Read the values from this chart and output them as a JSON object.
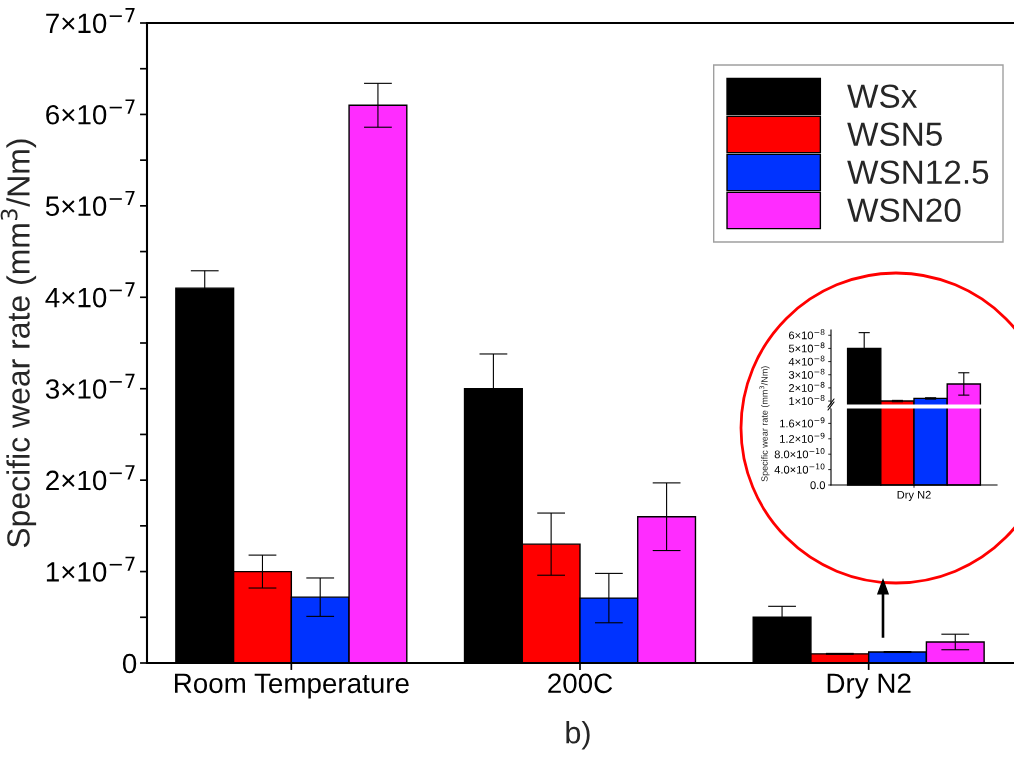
{
  "chart_data": [
    {
      "type": "bar",
      "ylabel": "Specific wear rate (mm$^{3}$/Nm)",
      "categories": [
        "Room Temperature",
        "200C",
        "Dry N2"
      ],
      "legend": "top right",
      "grid": false,
      "ylim": [
        0,
        7e-07
      ],
      "yticks": [
        {
          "value": 0,
          "label": "0"
        },
        {
          "value": 5e-08,
          "label": null
        },
        {
          "value": 1e-07,
          "label": "1×10$^{−7}$"
        },
        {
          "value": 1.5e-07,
          "label": null
        },
        {
          "value": 2e-07,
          "label": "2×10$^{−7}$"
        },
        {
          "value": 2.5e-07,
          "label": null
        },
        {
          "value": 3e-07,
          "label": "3×10$^{−7}$"
        },
        {
          "value": 3.5e-07,
          "label": null
        },
        {
          "value": 4e-07,
          "label": "4×10$^{−7}$"
        },
        {
          "value": 4.5e-07,
          "label": null
        },
        {
          "value": 5e-07,
          "label": "5×10$^{−7}$"
        },
        {
          "value": 5.5e-07,
          "label": null
        },
        {
          "value": 6e-07,
          "label": "6×10$^{−7}$"
        },
        {
          "value": 6.5e-07,
          "label": null
        },
        {
          "value": 7e-07,
          "label": "7×10$^{−7}$"
        }
      ],
      "series": [
        {
          "name": "WSx",
          "color": "#000000",
          "values": [
            4.1e-07,
            3e-07,
            5e-08
          ],
          "errors": [
            1.9e-08,
            3.8e-08,
            1.2e-08
          ]
        },
        {
          "name": "WSN5",
          "color": "#ff0000",
          "values": [
            1e-07,
            1.3e-07,
            1e-08
          ],
          "errors": [
            1.8e-08,
            3.4e-08,
            5e-10
          ]
        },
        {
          "name": "WSN12.5",
          "color": "#0033ff",
          "values": [
            7.2e-08,
            7.1e-08,
            1.2e-08
          ],
          "errors": [
            2.1e-08,
            2.7e-08,
            5e-10
          ]
        },
        {
          "name": "WSN20",
          "color": "#ff2cff",
          "values": [
            6.1e-07,
            1.6e-07,
            2.3e-08
          ],
          "errors": [
            2.4e-08,
            3.7e-08,
            8.5e-09
          ]
        }
      ],
      "annotations": [
        "b)"
      ]
    },
    {
      "type": "bar",
      "ylabel": "Specific wear rate (mm$^{3}$/Nm)",
      "categories": [
        null
      ],
      "tick_labels": "y",
      "grid": false,
      "ylim": [
        7e-09,
        6.4e-08
      ],
      "yticks": [
        {
          "value": 1e-08,
          "label": "1×10$^{−8}$"
        },
        {
          "value": 2e-08,
          "label": "2×10$^{−8}$"
        },
        {
          "value": 3e-08,
          "label": "3×10$^{−8}$"
        },
        {
          "value": 4e-08,
          "label": "4×10$^{−8}$"
        },
        {
          "value": 5e-08,
          "label": "5×10$^{−8}$"
        },
        {
          "value": 6e-08,
          "label": "6×10$^{−8}$"
        }
      ],
      "series": [
        {
          "color": "#000000",
          "values": [
            5e-08
          ],
          "errors": [
            1.2e-08
          ]
        },
        {
          "color": "#ff0000",
          "values": [
            1e-08
          ],
          "errors": [
            5e-10
          ]
        },
        {
          "color": "#0033ff",
          "values": [
            1.2e-08
          ],
          "errors": [
            5e-10
          ]
        },
        {
          "color": "#ff2cff",
          "values": [
            2.3e-08
          ],
          "errors": [
            8.5e-09
          ]
        }
      ]
    },
    {
      "type": "bar",
      "categories": [
        "Dry N2"
      ],
      "grid": false,
      "ylim": [
        0,
        2e-09
      ],
      "yticks": [
        {
          "value": 0,
          "label": "0.0"
        },
        {
          "value": 4e-10,
          "label": "4.0×10$^{−10}$"
        },
        {
          "value": 8e-10,
          "label": "8.0×10$^{−10}$"
        },
        {
          "value": 1.2e-09,
          "label": "1.2×10$^{−9}$"
        },
        {
          "value": 1.6e-09,
          "label": "1.6×10$^{−9}$"
        }
      ]
    }
  ]
}
